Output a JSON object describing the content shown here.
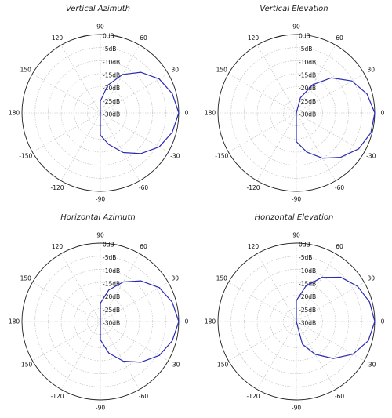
{
  "chart_data": [
    {
      "type": "polar",
      "title": "Vertical Azimuth",
      "angle_tick_labels": [
        "0",
        "30",
        "60",
        "90",
        "120",
        "150",
        "180",
        "-150",
        "-120",
        "-90",
        "-60",
        "-30"
      ],
      "radial_tick_labels": [
        "0dB",
        "-5dB",
        "-10dB",
        "-15dB",
        "-20dB",
        "-25dB",
        "-30dB"
      ],
      "radial_range_db": [
        -30,
        0
      ],
      "grid": true,
      "line_color": "#2b2bb5",
      "series": [
        {
          "angles_deg": [
            0,
            15,
            30,
            45,
            60,
            75,
            90,
            105,
            120,
            135,
            150,
            165,
            180,
            -165,
            -150,
            -135,
            -120,
            -105,
            -90,
            -75,
            -60,
            -45,
            -30,
            -15
          ],
          "values_db": [
            0,
            -1.5,
            -4,
            -8,
            -13,
            -19,
            -25.5,
            -30,
            -30,
            -30,
            -30,
            -30,
            -30,
            -30,
            -30,
            -30,
            -30,
            -30,
            -21.5,
            -17.5,
            -12.5,
            -8,
            -4,
            -1.5
          ]
        }
      ]
    },
    {
      "type": "polar",
      "title": "Vertical Elevation",
      "angle_tick_labels": [
        "0",
        "30",
        "60",
        "90",
        "120",
        "150",
        "180",
        "-150",
        "-120",
        "-90",
        "-60",
        "-30"
      ],
      "radial_tick_labels": [
        "0dB",
        "-5dB",
        "-10dB",
        "-15dB",
        "-20dB",
        "-25dB",
        "-30dB"
      ],
      "radial_range_db": [
        -30,
        0
      ],
      "grid": true,
      "line_color": "#2b2bb5",
      "series": [
        {
          "angles_deg": [
            0,
            15,
            30,
            45,
            60,
            75,
            90,
            105,
            120,
            135,
            150,
            165,
            180,
            -165,
            -150,
            -135,
            -120,
            -105,
            -90,
            -75,
            -60,
            -45,
            -30,
            -15
          ],
          "values_db": [
            0,
            -2,
            -5.5,
            -11,
            -17.5,
            -24,
            -30,
            -30,
            -30,
            -30,
            -30,
            -30,
            -30,
            -30,
            -30,
            -30,
            -30,
            -30,
            -19,
            -14.5,
            -10,
            -6,
            -2.5,
            -0.5
          ]
        }
      ]
    },
    {
      "type": "polar",
      "title": "Horizontal Azimuth",
      "angle_tick_labels": [
        "0",
        "30",
        "60",
        "90",
        "120",
        "150",
        "180",
        "-150",
        "-120",
        "-90",
        "-60",
        "-30"
      ],
      "radial_tick_labels": [
        "0dB",
        "-5dB",
        "-10dB",
        "-15dB",
        "-20dB",
        "-25dB",
        "-30dB"
      ],
      "radial_range_db": [
        -30,
        0
      ],
      "grid": true,
      "line_color": "#2b2bb5",
      "series": [
        {
          "angles_deg": [
            0,
            15,
            30,
            45,
            60,
            75,
            90,
            105,
            120,
            135,
            150,
            165,
            180,
            -165,
            -150,
            -135,
            -120,
            -105,
            -90,
            -75,
            -60,
            -45,
            -30,
            -15
          ],
          "values_db": [
            0,
            -1.5,
            -4,
            -8,
            -12.5,
            -17.5,
            -23,
            -30,
            -30,
            -30,
            -30,
            -30,
            -30,
            -30,
            -30,
            -30,
            -30,
            -30,
            -23,
            -17.5,
            -12.5,
            -8,
            -4,
            -1.5
          ]
        }
      ]
    },
    {
      "type": "polar",
      "title": "Horizontal Elevation",
      "angle_tick_labels": [
        "0",
        "30",
        "60",
        "90",
        "120",
        "150",
        "180",
        "-150",
        "-120",
        "-90",
        "-60",
        "-30"
      ],
      "radial_tick_labels": [
        "0dB",
        "-5dB",
        "-10dB",
        "-15dB",
        "-20dB",
        "-25dB",
        "-30dB"
      ],
      "radial_range_db": [
        -30,
        0
      ],
      "grid": true,
      "line_color": "#2b2bb5",
      "series": [
        {
          "angles_deg": [
            0,
            15,
            30,
            45,
            60,
            75,
            90,
            105,
            120,
            135,
            150,
            165,
            180,
            -165,
            -150,
            -135,
            -120,
            -105,
            -90,
            -75,
            -60,
            -45,
            -30,
            -15
          ],
          "values_db": [
            0,
            -1,
            -3,
            -6,
            -10.5,
            -16,
            -22,
            -30,
            -30,
            -30,
            -30,
            -30,
            -30,
            -30,
            -30,
            -30,
            -30,
            -30,
            -30,
            -21,
            -15.5,
            -10,
            -5,
            -1.5
          ]
        }
      ]
    }
  ]
}
